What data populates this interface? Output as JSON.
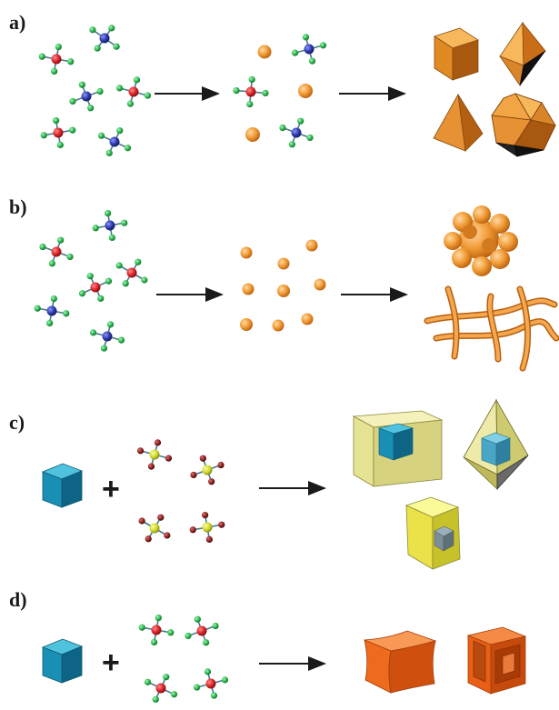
{
  "panels": [
    {
      "label": "a)"
    },
    {
      "label": "b)"
    },
    {
      "label": "c)"
    },
    {
      "label": "d)"
    }
  ],
  "plus_symbol": "+",
  "colors": {
    "metal_center_red": "#d81f26",
    "metal_center_blue": "#2a35a8",
    "metal_center_yellow": "#cfd62a",
    "ligand_green": "#27b34b",
    "ligand_darkred": "#8a1f1f",
    "bond": "#4a7a8a",
    "nanoparticle_orange": "#f09a34",
    "seed_blue": "#1a8fb5",
    "shell_yellow": "#e4e088",
    "product_orange": "#ee6a1c",
    "arrow": "#1a1a1a"
  }
}
